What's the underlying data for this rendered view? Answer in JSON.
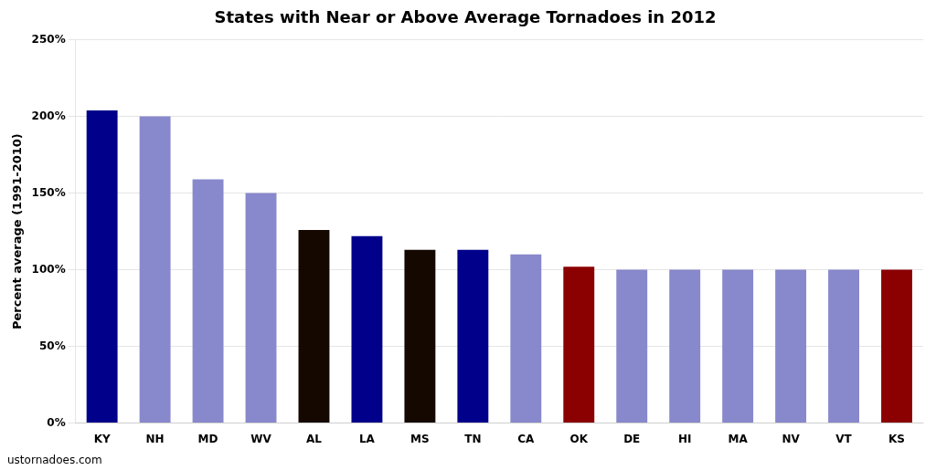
{
  "chart_data": {
    "type": "bar",
    "title": "States with Near or Above Average Tornadoes in 2012",
    "ylabel": "Percent average (1991-2010)",
    "annotations": [
      "ustornadoes.com"
    ],
    "categories": [
      "KY",
      "NH",
      "MD",
      "WV",
      "AL",
      "LA",
      "MS",
      "TN",
      "CA",
      "OK",
      "DE",
      "HI",
      "MA",
      "NV",
      "VT",
      "KS"
    ],
    "values": [
      204,
      200,
      159,
      150,
      126,
      122,
      113,
      113,
      110,
      102,
      100,
      100,
      100,
      100,
      100,
      100
    ],
    "colors": [
      "#00008B",
      "#8888CC",
      "#8888CC",
      "#8888CC",
      "#150800",
      "#00008B",
      "#150800",
      "#00008B",
      "#8888CC",
      "#8B0000",
      "#8888CC",
      "#8888CC",
      "#8888CC",
      "#8888CC",
      "#8888CC",
      "#8B0000"
    ],
    "ylim": [
      0,
      250
    ],
    "yticks": [
      {
        "value": 0,
        "label": "0%"
      },
      {
        "value": 50,
        "label": "50%"
      },
      {
        "value": 100,
        "label": "100%"
      },
      {
        "value": 150,
        "label": "150%"
      },
      {
        "value": 200,
        "label": "200%"
      },
      {
        "value": 250,
        "label": "250%"
      }
    ],
    "grid": "y"
  }
}
